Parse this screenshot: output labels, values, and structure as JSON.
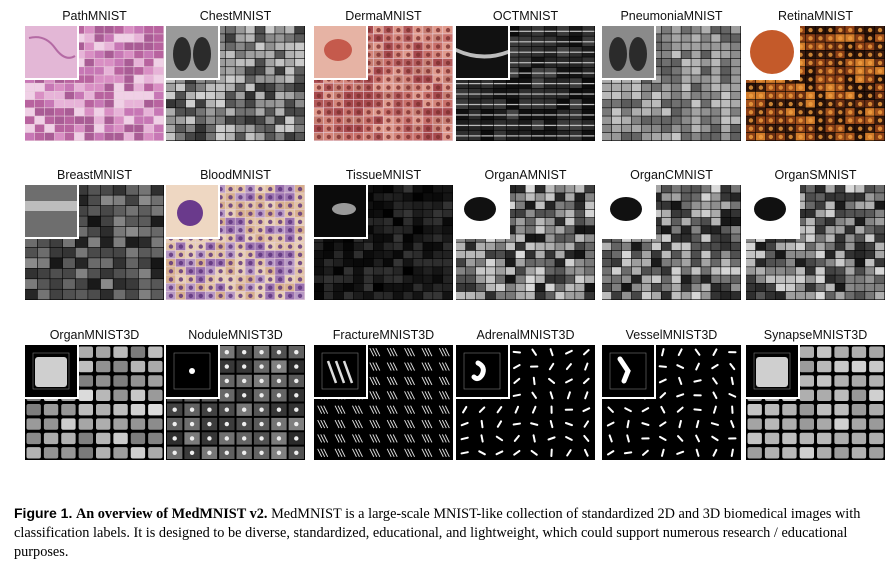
{
  "figure": {
    "datasets": [
      {
        "name": "PathMNIST",
        "style": "path"
      },
      {
        "name": "ChestMNIST",
        "style": "chest"
      },
      {
        "name": "DermaMNIST",
        "style": "derma"
      },
      {
        "name": "OCTMNIST",
        "style": "oct"
      },
      {
        "name": "PneumoniaMNIST",
        "style": "pneumonia"
      },
      {
        "name": "RetinaMNIST",
        "style": "retina"
      },
      {
        "name": "BreastMNIST",
        "style": "breast"
      },
      {
        "name": "BloodMNIST",
        "style": "blood"
      },
      {
        "name": "TissueMNIST",
        "style": "tissue"
      },
      {
        "name": "OrganAMNIST",
        "style": "organ"
      },
      {
        "name": "OrganCMNIST",
        "style": "organ"
      },
      {
        "name": "OrganSMNIST",
        "style": "organ"
      },
      {
        "name": "OrganMNIST3D",
        "style": "organ3d"
      },
      {
        "name": "NoduleMNIST3D",
        "style": "nodule3d"
      },
      {
        "name": "FractureMNIST3D",
        "style": "fracture3d"
      },
      {
        "name": "AdrenalMNIST3D",
        "style": "adrenal3d"
      },
      {
        "name": "VesselMNIST3D",
        "style": "vessel3d"
      },
      {
        "name": "SynapseMNIST3D",
        "style": "synapse3d"
      }
    ]
  },
  "caption": {
    "label": "Figure 1.",
    "heading": "An overview of MedMNIST v2.",
    "text": "MedMNIST is a large-scale MNIST-like collection of standardized 2D and 3D biomedical images with classification labels. It is designed to be diverse, standardized, educational, and lightweight, which could support numerous research / educational purposes."
  }
}
